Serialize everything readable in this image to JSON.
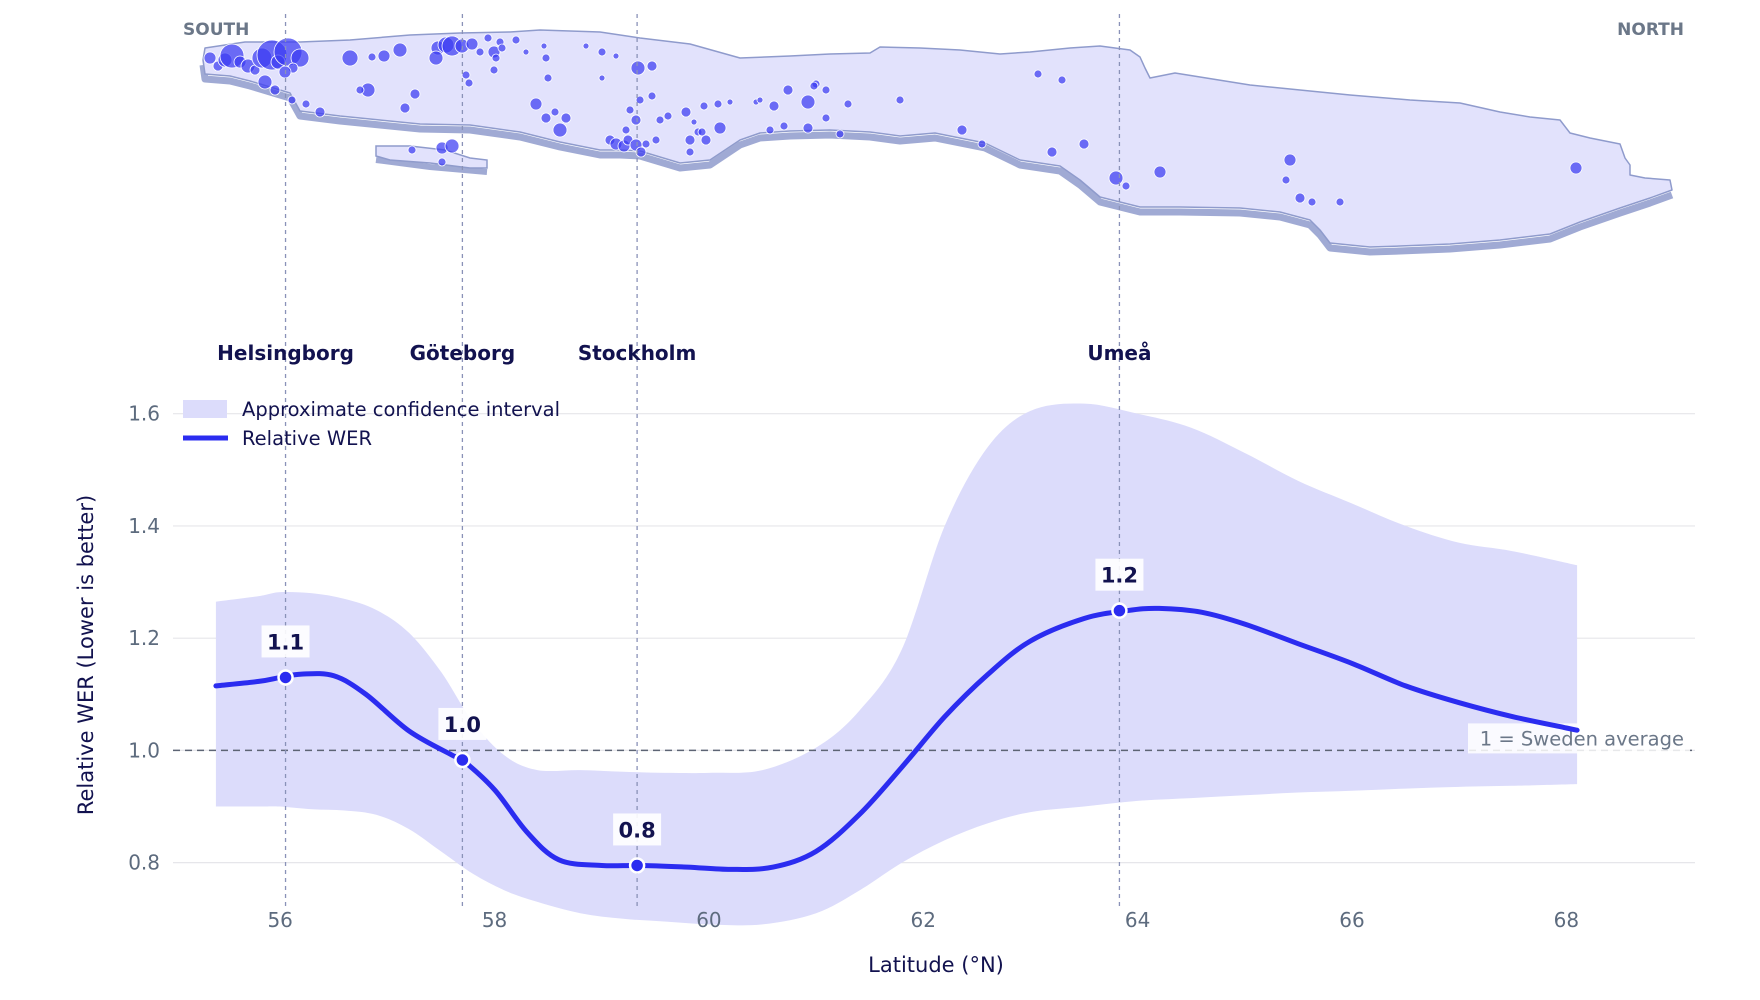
{
  "chart_data": {
    "type": "line",
    "x_label": "Latitude (°N)",
    "y_label": "Relative WER (Lower is better)",
    "xlim": [
      55.0,
      69.2
    ],
    "ylim": [
      0.68,
      1.66
    ],
    "x_ticks": [
      56,
      58,
      60,
      62,
      64,
      66,
      68
    ],
    "y_ticks": [
      0.8,
      1.0,
      1.2,
      1.4,
      1.6
    ],
    "grid": true,
    "legend_position": "top-left",
    "series": [
      {
        "name": "Relative WER",
        "color": "#2b2cf0",
        "x": [
          55.4,
          55.8,
          56.0,
          56.2,
          56.5,
          56.8,
          57.2,
          57.6,
          57.7,
          58.0,
          58.3,
          58.6,
          59.0,
          59.35,
          59.8,
          60.2,
          60.6,
          61.0,
          61.4,
          61.8,
          62.2,
          62.6,
          63.0,
          63.5,
          63.9,
          64.2,
          64.6,
          65.0,
          65.5,
          66.0,
          66.5,
          67.0,
          67.5,
          68.0,
          68.1
        ],
        "values": [
          1.115,
          1.123,
          1.13,
          1.136,
          1.133,
          1.1,
          1.035,
          0.992,
          0.983,
          0.93,
          0.855,
          0.805,
          0.795,
          0.795,
          0.792,
          0.788,
          0.792,
          0.82,
          0.885,
          0.97,
          1.06,
          1.135,
          1.195,
          1.235,
          1.249,
          1.253,
          1.246,
          1.225,
          1.19,
          1.155,
          1.115,
          1.085,
          1.06,
          1.04,
          1.036
        ]
      }
    ],
    "confidence_band": {
      "name": "Approximate confidence interval",
      "color": "#dcdcfb",
      "x": [
        55.4,
        55.8,
        56.0,
        56.3,
        56.6,
        56.9,
        57.2,
        57.5,
        57.8,
        58.1,
        58.4,
        58.8,
        59.2,
        59.6,
        60.0,
        60.5,
        61.0,
        61.4,
        61.8,
        62.2,
        62.6,
        63.0,
        63.5,
        64.0,
        64.5,
        65.0,
        65.5,
        66.0,
        66.5,
        67.0,
        67.5,
        68.1
      ],
      "lower": [
        0.9,
        0.9,
        0.9,
        0.895,
        0.893,
        0.885,
        0.86,
        0.82,
        0.78,
        0.75,
        0.73,
        0.71,
        0.7,
        0.695,
        0.69,
        0.69,
        0.71,
        0.75,
        0.8,
        0.84,
        0.87,
        0.89,
        0.9,
        0.91,
        0.915,
        0.92,
        0.925,
        0.928,
        0.932,
        0.935,
        0.937,
        0.94
      ],
      "upper": [
        1.265,
        1.275,
        1.282,
        1.28,
        1.27,
        1.25,
        1.21,
        1.14,
        1.05,
        0.99,
        0.965,
        0.965,
        0.962,
        0.96,
        0.96,
        0.965,
        1.005,
        1.07,
        1.18,
        1.4,
        1.54,
        1.605,
        1.618,
        1.6,
        1.575,
        1.53,
        1.48,
        1.44,
        1.4,
        1.37,
        1.355,
        1.33
      ]
    },
    "reference_line": {
      "y": 1.0,
      "label": "1 = Sweden average"
    },
    "highlighted_points": [
      {
        "city": "Helsingborg",
        "x": 56.05,
        "y": 1.13,
        "label": "1.1"
      },
      {
        "city": "Göteborg",
        "x": 57.7,
        "y": 0.983,
        "label": "1.0"
      },
      {
        "city": "Stockholm",
        "x": 59.33,
        "y": 0.795,
        "label": "0.8"
      },
      {
        "city": "Umeå",
        "x": 63.83,
        "y": 1.249,
        "label": "1.2"
      }
    ]
  },
  "map": {
    "south_label": "SOUTH",
    "north_label": "NORTH",
    "fill_color": "#e2e2fc",
    "edge_color": "#8f9bcc",
    "dot_color": "#3b3cf2"
  },
  "colors": {
    "line": "#2b2cf0",
    "band": "#dcdcfb",
    "grid": "#e6e6ea",
    "text_dark": "#12124f",
    "text_muted": "#5d6b7e"
  }
}
